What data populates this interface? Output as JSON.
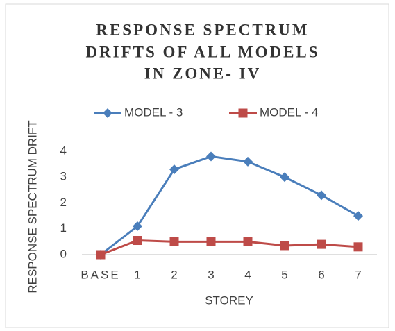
{
  "chart_data": {
    "type": "line",
    "title": [
      "RESPONSE SPECTRUM",
      "DRIFTS OF ALL MODELS",
      "IN ZONE- IV"
    ],
    "x_label": "STOREY",
    "y_label": "RESPONSE SPECTRUM DRIFT",
    "categories": [
      "BASE",
      "1",
      "2",
      "3",
      "4",
      "5",
      "6",
      "7"
    ],
    "series": [
      {
        "name": "MODEL - 3",
        "color": "#4a7ebb",
        "marker": "diamond",
        "values": [
          0,
          1.1,
          3.3,
          3.8,
          3.6,
          3.0,
          2.3,
          1.5
        ]
      },
      {
        "name": "MODEL - 4",
        "color": "#be4b48",
        "marker": "square",
        "values": [
          0,
          0.55,
          0.5,
          0.5,
          0.5,
          0.35,
          0.4,
          0.3
        ]
      }
    ],
    "ylim": [
      0,
      4
    ],
    "yticks": [
      0,
      1,
      2,
      3,
      4
    ],
    "grid": false,
    "legend": "top"
  }
}
